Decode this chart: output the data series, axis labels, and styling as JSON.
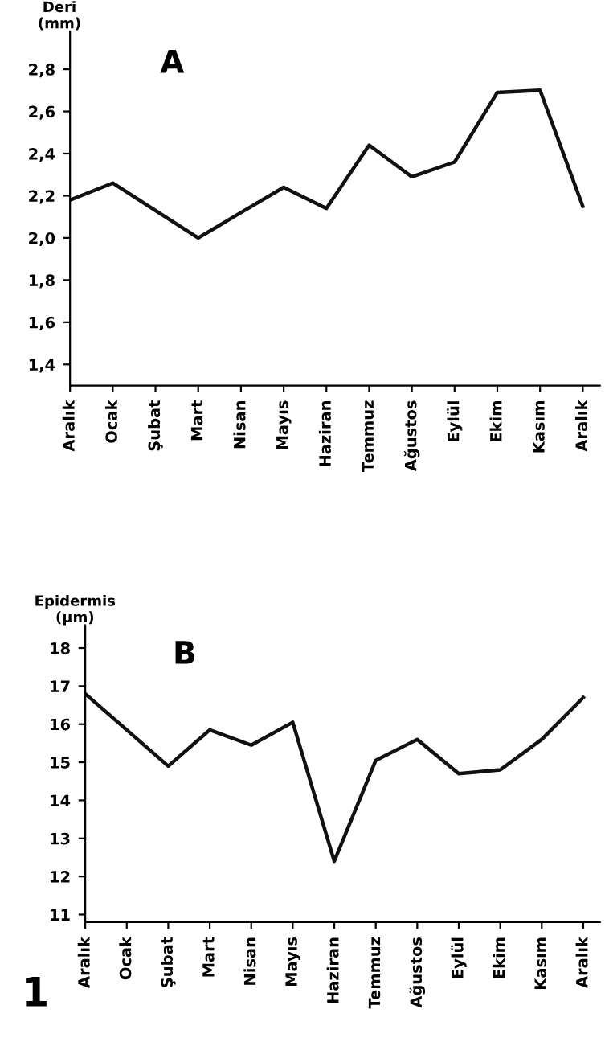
{
  "chart_data": [
    {
      "type": "line",
      "title": "A",
      "ylabel": "Deri\n(mm)",
      "categories": [
        "Aralık",
        "Ocak",
        "Şubat",
        "Mart",
        "Nisan",
        "Mayıs",
        "Haziran",
        "Temmuz",
        "Ağustos",
        "Eylül",
        "Ekim",
        "Kasım",
        "Aralık"
      ],
      "series": [
        {
          "color": "#111111",
          "values": [
            2.18,
            2.26,
            2.13,
            2.0,
            2.12,
            2.24,
            2.14,
            2.44,
            2.29,
            2.36,
            2.69,
            2.7,
            2.15
          ]
        }
      ],
      "ylim": [
        1.3,
        2.98
      ],
      "yticks": [
        {
          "value": 1.4,
          "label": "1,4"
        },
        {
          "value": 1.6,
          "label": "1,6"
        },
        {
          "value": 1.8,
          "label": "1,8"
        },
        {
          "value": 2.0,
          "label": "2,0"
        },
        {
          "value": 2.2,
          "label": "2,2"
        },
        {
          "value": 2.4,
          "label": "2,4"
        },
        {
          "value": 2.6,
          "label": "2,6"
        },
        {
          "value": 2.8,
          "label": "2,8"
        }
      ],
      "line_style": "solid"
    },
    {
      "type": "line",
      "title": "B",
      "ylabel": "Epidermis\n(μm)",
      "categories": [
        "Aralık",
        "Ocak",
        "Şubat",
        "Mart",
        "Nisan",
        "Mayıs",
        "Haziran",
        "Temmuz",
        "Ağustos",
        "Eylül",
        "Ekim",
        "Kasım",
        "Aralık"
      ],
      "series": [
        {
          "color": "#111111",
          "values": [
            16.8,
            15.85,
            14.9,
            15.85,
            15.45,
            16.05,
            12.4,
            15.05,
            15.6,
            14.7,
            14.8,
            15.6,
            16.7
          ]
        }
      ],
      "ylim": [
        10.8,
        18.6
      ],
      "yticks": [
        11,
        12,
        13,
        14,
        15,
        16,
        17,
        18
      ],
      "line_style": "solid",
      "annotations": [
        "1"
      ]
    }
  ]
}
